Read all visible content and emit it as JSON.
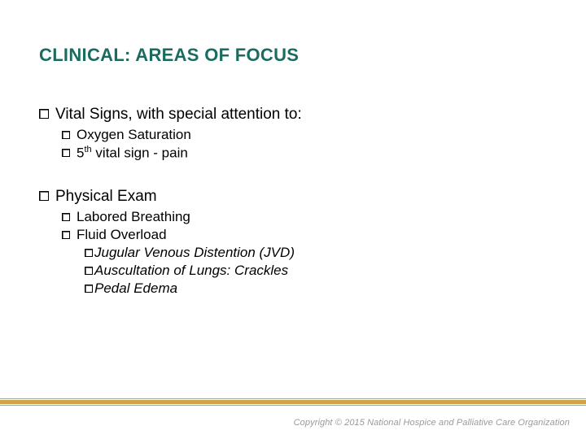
{
  "title": "CLINICAL: AREAS OF FOCUS",
  "colors": {
    "title": "#1b6b5f",
    "band": "#cfa24a",
    "bandEdge": "#9aa99e",
    "text": "#000000",
    "copyright": "#9a9a9a",
    "background": "#ffffff"
  },
  "fonts": {
    "family": "Arial",
    "title_size": 22,
    "lvl1_size": 19,
    "lvl2_size": 17,
    "lvl3_size": 17
  },
  "section1": {
    "heading": "Vital Signs, with special attention to:",
    "items": {
      "a": "Oxygen Saturation",
      "b_prefix": "5",
      "b_sup": "th",
      "b_suffix": " vital sign - pain"
    }
  },
  "section2": {
    "heading": "Physical Exam",
    "items": {
      "a": "Labored Breathing",
      "b": "Fluid Overload"
    },
    "subitems": {
      "a": "Jugular Venous Distention (JVD)",
      "b": "Auscultation of Lungs: Crackles",
      "c": "Pedal Edema"
    }
  },
  "footer": {
    "copyright": "Copyright © 2015 National Hospice and Palliative Care Organization"
  }
}
